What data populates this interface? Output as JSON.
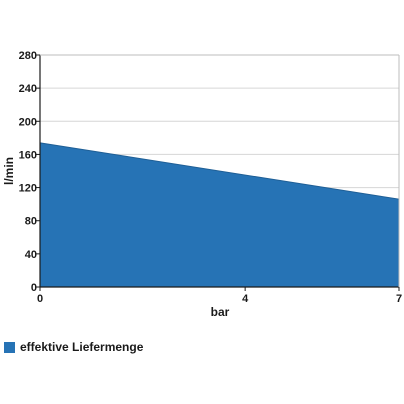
{
  "chart_data": {
    "type": "area",
    "xlabel": "bar",
    "ylabel": "l/min",
    "x_ticks": [
      0,
      4,
      7
    ],
    "y_ticks": [
      0,
      40,
      80,
      120,
      160,
      200,
      240,
      280
    ],
    "xlim": [
      0,
      7
    ],
    "ylim": [
      0,
      280
    ],
    "grid": true,
    "legend_position": "bottom-left",
    "series": [
      {
        "name": "effektive Liefermenge",
        "color": "#2673b5",
        "x": [
          0,
          7
        ],
        "y": [
          174,
          106
        ]
      }
    ]
  }
}
